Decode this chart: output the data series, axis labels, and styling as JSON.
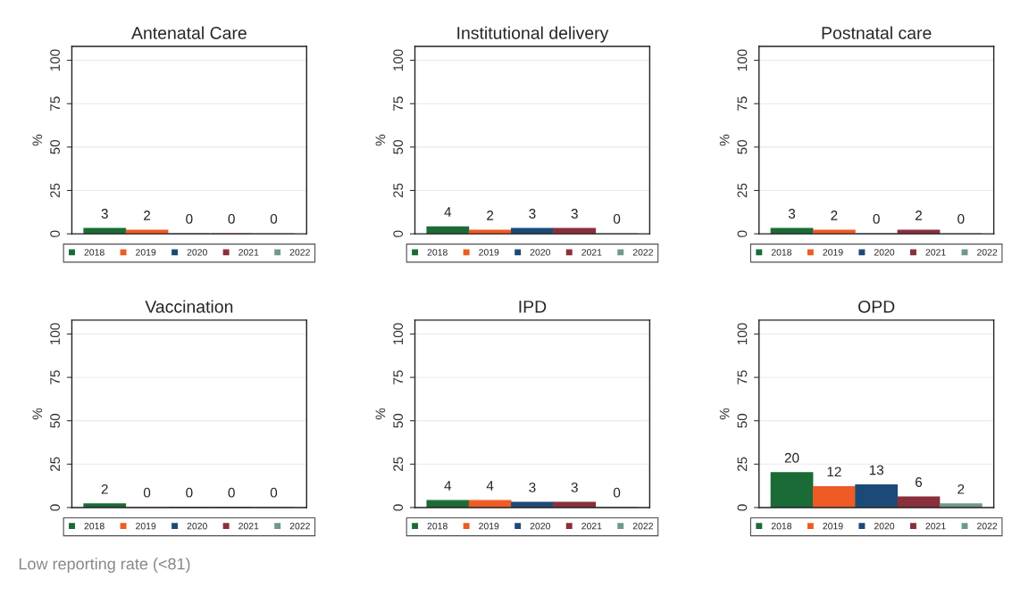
{
  "chart_data": [
    {
      "type": "bar",
      "title": "Antenatal Care",
      "ylabel": "%",
      "categories": [
        null
      ],
      "ylim": [
        0,
        108
      ],
      "yticks": [
        0,
        25,
        50,
        75,
        100
      ],
      "grid": "y",
      "legend": "bottom",
      "data_labels": true,
      "series": [
        {
          "name": "2018",
          "color": "#1b6b36",
          "values": [
            3
          ]
        },
        {
          "name": "2019",
          "color": "#ee5b24",
          "values": [
            2
          ]
        },
        {
          "name": "2020",
          "color": "#1b4a78",
          "values": [
            0
          ]
        },
        {
          "name": "2021",
          "color": "#8a2f3c",
          "values": [
            0
          ]
        },
        {
          "name": "2022",
          "color": "#6e9a8a",
          "values": [
            0
          ]
        }
      ]
    },
    {
      "type": "bar",
      "title": "Institutional delivery",
      "ylabel": "%",
      "categories": [
        null
      ],
      "ylim": [
        0,
        108
      ],
      "yticks": [
        0,
        25,
        50,
        75,
        100
      ],
      "grid": "y",
      "legend": "bottom",
      "data_labels": true,
      "series": [
        {
          "name": "2018",
          "color": "#1b6b36",
          "values": [
            4
          ]
        },
        {
          "name": "2019",
          "color": "#ee5b24",
          "values": [
            2
          ]
        },
        {
          "name": "2020",
          "color": "#1b4a78",
          "values": [
            3
          ]
        },
        {
          "name": "2021",
          "color": "#8a2f3c",
          "values": [
            3
          ]
        },
        {
          "name": "2022",
          "color": "#6e9a8a",
          "values": [
            0
          ]
        }
      ]
    },
    {
      "type": "bar",
      "title": "Postnatal care",
      "ylabel": "%",
      "categories": [
        null
      ],
      "ylim": [
        0,
        108
      ],
      "yticks": [
        0,
        25,
        50,
        75,
        100
      ],
      "grid": "y",
      "legend": "bottom",
      "data_labels": true,
      "series": [
        {
          "name": "2018",
          "color": "#1b6b36",
          "values": [
            3
          ]
        },
        {
          "name": "2019",
          "color": "#ee5b24",
          "values": [
            2
          ]
        },
        {
          "name": "2020",
          "color": "#1b4a78",
          "values": [
            0
          ]
        },
        {
          "name": "2021",
          "color": "#8a2f3c",
          "values": [
            2
          ]
        },
        {
          "name": "2022",
          "color": "#6e9a8a",
          "values": [
            0
          ]
        }
      ]
    },
    {
      "type": "bar",
      "title": "Vaccination",
      "ylabel": "%",
      "categories": [
        null
      ],
      "ylim": [
        0,
        108
      ],
      "yticks": [
        0,
        25,
        50,
        75,
        100
      ],
      "grid": "y",
      "legend": "bottom",
      "data_labels": true,
      "series": [
        {
          "name": "2018",
          "color": "#1b6b36",
          "values": [
            2
          ]
        },
        {
          "name": "2019",
          "color": "#ee5b24",
          "values": [
            0
          ]
        },
        {
          "name": "2020",
          "color": "#1b4a78",
          "values": [
            0
          ]
        },
        {
          "name": "2021",
          "color": "#8a2f3c",
          "values": [
            0
          ]
        },
        {
          "name": "2022",
          "color": "#6e9a8a",
          "values": [
            0
          ]
        }
      ]
    },
    {
      "type": "bar",
      "title": "IPD",
      "ylabel": "%",
      "categories": [
        null
      ],
      "ylim": [
        0,
        108
      ],
      "yticks": [
        0,
        25,
        50,
        75,
        100
      ],
      "grid": "y",
      "legend": "bottom",
      "data_labels": true,
      "series": [
        {
          "name": "2018",
          "color": "#1b6b36",
          "values": [
            4
          ]
        },
        {
          "name": "2019",
          "color": "#ee5b24",
          "values": [
            4
          ]
        },
        {
          "name": "2020",
          "color": "#1b4a78",
          "values": [
            3
          ]
        },
        {
          "name": "2021",
          "color": "#8a2f3c",
          "values": [
            3
          ]
        },
        {
          "name": "2022",
          "color": "#6e9a8a",
          "values": [
            0
          ]
        }
      ]
    },
    {
      "type": "bar",
      "title": "OPD",
      "ylabel": "%",
      "categories": [
        null
      ],
      "ylim": [
        0,
        108
      ],
      "yticks": [
        0,
        25,
        50,
        75,
        100
      ],
      "grid": "y",
      "legend": "bottom",
      "data_labels": true,
      "annotations": [
        "Low reporting rate (<81)"
      ],
      "series": [
        {
          "name": "2018",
          "color": "#1b6b36",
          "values": [
            20
          ]
        },
        {
          "name": "2019",
          "color": "#ee5b24",
          "values": [
            12
          ]
        },
        {
          "name": "2020",
          "color": "#1b4a78",
          "values": [
            13
          ]
        },
        {
          "name": "2021",
          "color": "#8a2f3c",
          "values": [
            6
          ]
        },
        {
          "name": "2022",
          "color": "#6e9a8a",
          "values": [
            2
          ]
        }
      ]
    }
  ]
}
